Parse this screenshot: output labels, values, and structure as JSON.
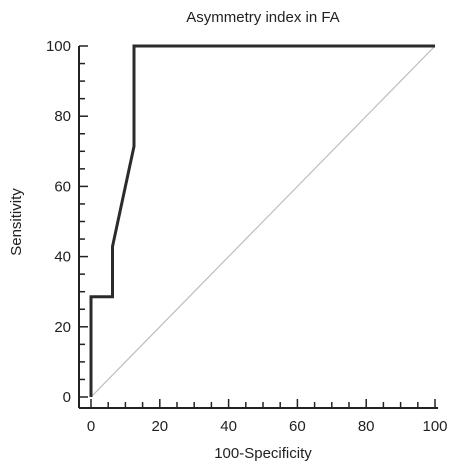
{
  "chart_data": {
    "type": "line",
    "title": "Asymmetry index in FA",
    "xlabel": "100-Specificity",
    "ylabel": "Sensitivity",
    "xlim": [
      0,
      100
    ],
    "ylim": [
      0,
      100
    ],
    "xticks": [
      0,
      20,
      40,
      60,
      80,
      100
    ],
    "yticks": [
      0,
      20,
      40,
      60,
      80,
      100
    ],
    "grid": false,
    "series": [
      {
        "x": [
          0,
          0,
          6.25,
          6.25,
          12.5,
          12.5,
          100
        ],
        "y": [
          0,
          28.57,
          28.57,
          42.86,
          71.43,
          100,
          100
        ],
        "color": "#2b2b2b"
      },
      {
        "x": [
          0,
          100
        ],
        "y": [
          0,
          100
        ],
        "color": "#bdbdbd"
      }
    ]
  }
}
